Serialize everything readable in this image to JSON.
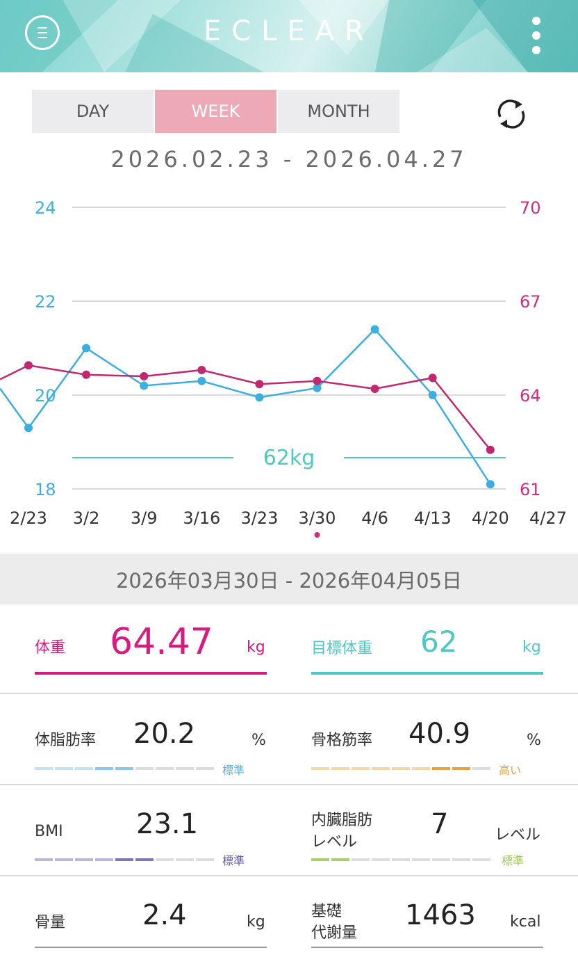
{
  "header": {
    "title": "ECLEAR",
    "menu_icon": "menu-circle-icon",
    "more_icon": "more-vertical-icon"
  },
  "tabs": [
    {
      "label": "DAY",
      "active": false
    },
    {
      "label": "WEEK",
      "active": true
    },
    {
      "label": "MONTH",
      "active": false
    }
  ],
  "refresh_icon": "refresh-icon",
  "date_range": "2026.02.23 - 2026.04.27",
  "chart_data": {
    "type": "line",
    "x": [
      "2/23",
      "3/2",
      "3/9",
      "3/16",
      "3/23",
      "3/30",
      "4/6",
      "4/13",
      "4/20",
      "4/27"
    ],
    "left_axis": {
      "ticks": [
        "24",
        "22",
        "20",
        "18"
      ],
      "color": "#3daee0",
      "ylim": [
        18,
        24
      ]
    },
    "right_axis": {
      "ticks": [
        "70",
        "67",
        "64",
        "61"
      ],
      "color": "#d02b7f",
      "ylim": [
        61,
        70
      ]
    },
    "series": [
      {
        "axis": "left",
        "color": "#3daee0",
        "lead_in": 20.2,
        "values": [
          19.3,
          21.0,
          20.2,
          20.3,
          19.95,
          20.15,
          21.4,
          20.0,
          18.1,
          null
        ]
      },
      {
        "axis": "right",
        "color": "#c2286f",
        "lead_in": 64.5,
        "values": [
          64.95,
          64.65,
          64.6,
          64.8,
          64.35,
          64.45,
          64.2,
          64.55,
          62.25,
          null
        ]
      }
    ],
    "target_line": {
      "value": 62,
      "axis": "right",
      "label": "62kg",
      "color": "#4ec9c2"
    },
    "selected_index": 5
  },
  "week_range": "2026年03月30日 - 2026年04月05日",
  "weight": {
    "label": "体重",
    "value": "64.47",
    "unit": "kg",
    "color": "#d81b7e"
  },
  "target_weight": {
    "label": "目標体重",
    "value": "62",
    "unit": "kg",
    "color": "#4ec9c2"
  },
  "body_fat": {
    "label": "体脂肪率",
    "value": "20.2",
    "unit": "%",
    "status": "標準",
    "status_color": "#5bb3e0",
    "level": 5
  },
  "skeletal_muscle": {
    "label": "骨格筋率",
    "value": "40.9",
    "unit": "%",
    "status": "高い",
    "status_color": "#e2a23a",
    "level": 8
  },
  "bmi": {
    "label": "BMI",
    "value": "23.1",
    "unit": "",
    "status": "標準",
    "status_color": "#5e5aa8",
    "level": 6
  },
  "visceral_fat": {
    "label_1": "内臓脂肪",
    "label_2": "レベル",
    "value": "7",
    "unit": "レベル",
    "status": "標準",
    "status_color": "#9bca53",
    "level": 2
  },
  "bone_mass": {
    "label": "骨量",
    "value": "2.4",
    "unit": "kg"
  },
  "bmr": {
    "label_1": "基礎",
    "label_2": "代謝量",
    "value": "1463",
    "unit": "kcal"
  }
}
